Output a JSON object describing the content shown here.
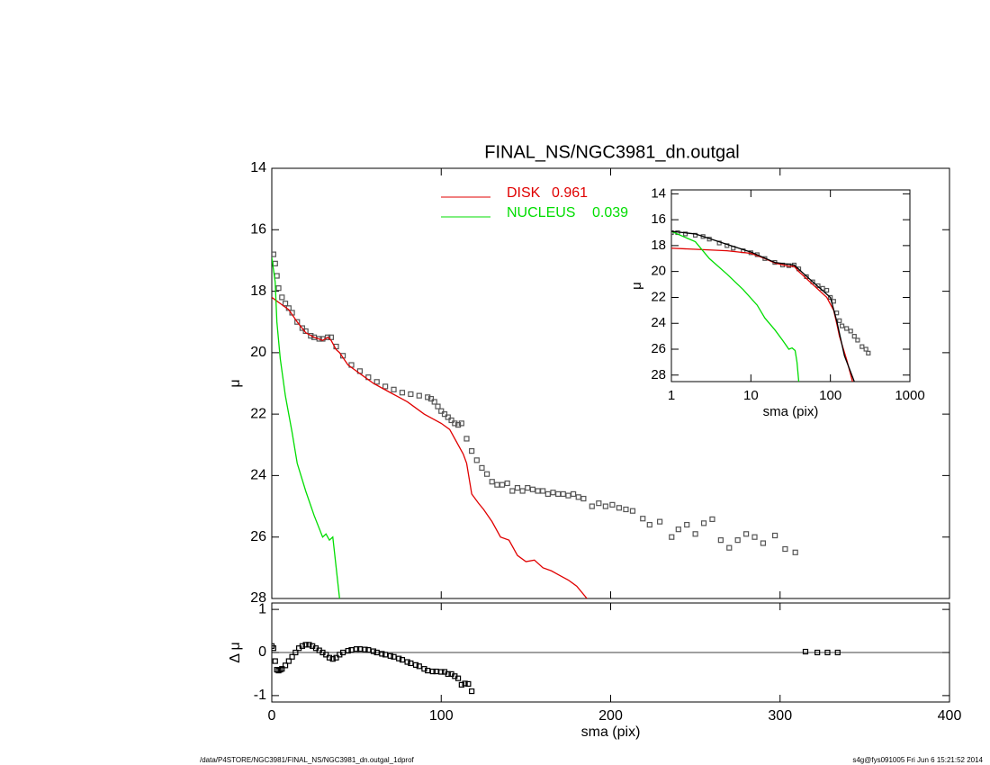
{
  "chart_data": [
    {
      "type": "line",
      "title": "FINAL_NS/NGC3981_dn.outgal",
      "ylabel": "μ",
      "xlim": [
        0,
        400
      ],
      "xticks": [
        0,
        100,
        200,
        300,
        400
      ],
      "show_xtick_labels": false,
      "ylim": [
        14,
        28
      ],
      "yticks": [
        14,
        16,
        18,
        20,
        22,
        24,
        26,
        28
      ],
      "y_inverted": true,
      "series": [
        {
          "style": "markers",
          "color": "#555555",
          "x": [
            1,
            2,
            3,
            4,
            6,
            8,
            10,
            12,
            15,
            18,
            20,
            23,
            25,
            28,
            30,
            33,
            35,
            38,
            42,
            47,
            52,
            57,
            62,
            67,
            72,
            77,
            82,
            87,
            92,
            94,
            96,
            98,
            100,
            102,
            104,
            106,
            108,
            110,
            112,
            115,
            118,
            121,
            124,
            127,
            130,
            133,
            136,
            139,
            142,
            145,
            148,
            151,
            154,
            157,
            160,
            163,
            166,
            169,
            172,
            175,
            178,
            181,
            184,
            189,
            193,
            197,
            201,
            205,
            209,
            213,
            219,
            223,
            229,
            236,
            240,
            245,
            250,
            255,
            260,
            265,
            270,
            275,
            280,
            285,
            290,
            297,
            303,
            309
          ],
          "values": [
            16.8,
            17.1,
            17.5,
            17.9,
            18.2,
            18.4,
            18.55,
            18.7,
            19.0,
            19.2,
            19.3,
            19.45,
            19.5,
            19.55,
            19.55,
            19.5,
            19.5,
            19.8,
            20.1,
            20.4,
            20.6,
            20.8,
            20.95,
            21.1,
            21.2,
            21.3,
            21.35,
            21.4,
            21.45,
            21.5,
            21.6,
            21.75,
            21.9,
            22.0,
            22.1,
            22.2,
            22.3,
            22.35,
            22.3,
            22.8,
            23.2,
            23.5,
            23.75,
            23.95,
            24.2,
            24.3,
            24.3,
            24.25,
            24.5,
            24.4,
            24.5,
            24.4,
            24.45,
            24.5,
            24.5,
            24.6,
            24.55,
            24.6,
            24.6,
            24.65,
            24.6,
            24.7,
            24.75,
            25.0,
            24.9,
            25.0,
            24.95,
            25.05,
            25.1,
            25.15,
            25.4,
            25.6,
            25.5,
            26.0,
            25.75,
            25.6,
            25.9,
            25.55,
            25.42,
            26.1,
            26.35,
            26.1,
            25.9,
            26.0,
            26.2,
            25.95,
            26.39,
            26.5
          ]
        },
        {
          "style": "line",
          "name": "DISK",
          "fraction": 0.961,
          "color": "#e00000",
          "x": [
            0,
            5,
            10,
            15,
            20,
            25,
            30,
            33,
            35,
            38,
            40,
            45,
            50,
            55,
            60,
            65,
            70,
            75,
            80,
            85,
            90,
            95,
            100,
            105,
            110,
            113,
            115,
            118,
            122,
            125,
            130,
            135,
            140,
            145,
            150,
            155,
            160,
            165,
            170,
            175,
            180,
            186
          ],
          "values": [
            18.2,
            18.4,
            18.6,
            19.0,
            19.35,
            19.5,
            19.6,
            19.5,
            19.6,
            19.9,
            20.0,
            20.4,
            20.6,
            20.8,
            21.0,
            21.15,
            21.3,
            21.45,
            21.6,
            21.8,
            22.0,
            22.15,
            22.3,
            22.5,
            23.0,
            23.3,
            23.6,
            24.6,
            24.9,
            25.1,
            25.5,
            26.0,
            26.1,
            26.6,
            26.8,
            26.75,
            27.0,
            27.1,
            27.25,
            27.4,
            27.6,
            28.0
          ]
        },
        {
          "style": "line",
          "name": "NUCLEUS",
          "fraction": 0.039,
          "color": "#00dd00",
          "x": [
            0,
            2,
            3,
            5,
            8,
            12,
            15,
            20,
            25,
            30,
            32,
            34,
            36,
            38,
            40
          ],
          "values": [
            16.9,
            17.7,
            19.0,
            20.2,
            21.4,
            22.6,
            23.6,
            24.5,
            25.3,
            26.0,
            25.9,
            26.1,
            26.0,
            27.0,
            28.0
          ]
        }
      ]
    },
    {
      "type": "line",
      "xlabel": "sma (pix)",
      "ylabel": "μ",
      "xlog": true,
      "xlim": [
        1,
        1000
      ],
      "xticks": [
        1,
        10,
        100,
        1000
      ],
      "ylim": [
        13.7,
        28.5
      ],
      "yticks": [
        14,
        16,
        18,
        20,
        22,
        24,
        26,
        28
      ],
      "y_inverted": true,
      "series": [
        {
          "style": "markers",
          "color": "#555555",
          "x": [
            1,
            1.2,
            1.5,
            2,
            2.5,
            3,
            4,
            5,
            6,
            8,
            10,
            12,
            15,
            20,
            25,
            30,
            35,
            40,
            50,
            60,
            70,
            80,
            90,
            100,
            110,
            120,
            130,
            140,
            160,
            180,
            200,
            220,
            250,
            280,
            300
          ],
          "values": [
            17.0,
            17.0,
            17.1,
            17.2,
            17.3,
            17.5,
            17.8,
            18.0,
            18.2,
            18.4,
            18.55,
            18.7,
            19.0,
            19.3,
            19.5,
            19.55,
            19.5,
            19.8,
            20.4,
            20.8,
            21.1,
            21.3,
            21.45,
            22.0,
            22.3,
            23.2,
            23.8,
            24.2,
            24.4,
            24.6,
            25.0,
            25.3,
            25.8,
            26.0,
            26.3
          ]
        },
        {
          "style": "line",
          "color": "#e00000",
          "x": [
            1,
            5,
            10,
            15,
            20,
            30,
            35,
            40,
            60,
            90,
            110,
            120,
            130,
            160,
            190
          ],
          "values": [
            18.2,
            18.4,
            18.6,
            19.0,
            19.35,
            19.6,
            19.6,
            20.0,
            21.0,
            22.0,
            23.0,
            24.0,
            25.0,
            26.8,
            28.5
          ]
        },
        {
          "style": "line",
          "color": "#00dd00",
          "x": [
            1,
            2,
            3,
            5,
            8,
            12,
            15,
            20,
            25,
            30,
            33,
            36,
            38,
            40
          ],
          "values": [
            16.9,
            17.7,
            19.0,
            20.2,
            21.4,
            22.6,
            23.6,
            24.5,
            25.3,
            26.0,
            25.9,
            26.1,
            27.0,
            28.5
          ]
        },
        {
          "style": "line",
          "color": "#000000",
          "x": [
            1,
            2,
            5,
            10,
            20,
            35,
            60,
            100,
            120,
            150,
            200
          ],
          "values": [
            16.9,
            17.1,
            17.9,
            18.5,
            19.3,
            19.5,
            20.8,
            22.0,
            23.8,
            26.5,
            28.5
          ]
        }
      ]
    },
    {
      "type": "scatter",
      "xlabel": "sma (pix)",
      "ylabel": "Δ μ",
      "reference_line": 0,
      "xlim": [
        0,
        400
      ],
      "xticks": [
        0,
        100,
        200,
        300,
        400
      ],
      "show_xtick_labels": true,
      "ylim": [
        -1.15,
        1.15
      ],
      "yticks": [
        -1,
        0,
        1
      ],
      "series": [
        {
          "style": "markers",
          "color": "#000000",
          "x": [
            0,
            1,
            2,
            3,
            4,
            5,
            6,
            8,
            10,
            12,
            14,
            16,
            18,
            20,
            22,
            24,
            26,
            28,
            30,
            32,
            34,
            36,
            38,
            40,
            42,
            45,
            47,
            50,
            52,
            55,
            57,
            60,
            62,
            65,
            67,
            70,
            72,
            75,
            77,
            80,
            82,
            85,
            87,
            90,
            92,
            95,
            97,
            100,
            102,
            104,
            106,
            108,
            110,
            112,
            114,
            116,
            118,
            315,
            322,
            328,
            334
          ],
          "values": [
            0.15,
            0.1,
            -0.2,
            -0.4,
            -0.42,
            -0.4,
            -0.38,
            -0.3,
            -0.2,
            -0.1,
            0.0,
            0.1,
            0.15,
            0.18,
            0.18,
            0.15,
            0.1,
            0.05,
            0.0,
            -0.05,
            -0.12,
            -0.15,
            -0.12,
            -0.05,
            0.0,
            0.04,
            0.06,
            0.08,
            0.08,
            0.07,
            0.06,
            0.03,
            0.0,
            -0.03,
            -0.05,
            -0.08,
            -0.1,
            -0.14,
            -0.17,
            -0.22,
            -0.25,
            -0.29,
            -0.32,
            -0.38,
            -0.42,
            -0.44,
            -0.44,
            -0.45,
            -0.45,
            -0.5,
            -0.5,
            -0.55,
            -0.6,
            -0.75,
            -0.72,
            -0.73,
            -0.9,
            0.02,
            0.0,
            0.0,
            0.0
          ]
        }
      ]
    }
  ],
  "footer": {
    "left": "/data/P4STORE/NGC3981/FINAL_NS/NGC3981_dn.outgal_1dprof",
    "right": "s4g@fys091005  Fri Jun  6 15:21:52 2014"
  }
}
